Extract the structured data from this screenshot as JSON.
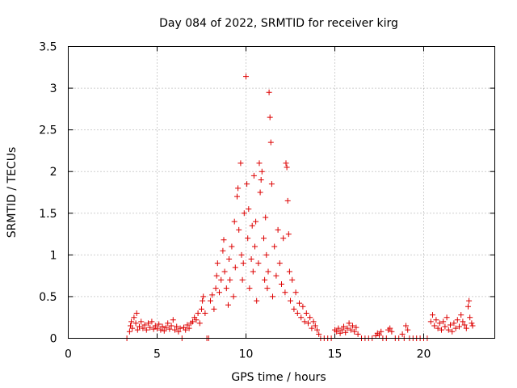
{
  "chart_data": {
    "type": "scatter",
    "title": "Day 084 of 2022, SRMTID for receiver kirg",
    "xlabel": "GPS time / hours",
    "ylabel": "SRMTID / TECUs",
    "xlim": [
      0,
      24
    ],
    "ylim": [
      0,
      3.5
    ],
    "x_ticks": [
      0,
      5,
      10,
      15,
      20
    ],
    "x_tick_labels": [
      "0",
      "5",
      "10",
      "15",
      "20"
    ],
    "y_ticks": [
      0,
      0.5,
      1,
      1.5,
      2,
      2.5,
      3,
      3.5
    ],
    "y_tick_labels": [
      "0",
      "0.5",
      "1",
      "1.5",
      "2",
      "2.5",
      "3",
      "3.5"
    ],
    "grid": true,
    "marker": "plus",
    "series": [
      {
        "name": "SRMTID",
        "color": "#dd0000",
        "points": [
          [
            3.3,
            0.0
          ],
          [
            3.45,
            0.08
          ],
          [
            3.5,
            0.15
          ],
          [
            3.55,
            0.2
          ],
          [
            3.6,
            0.12
          ],
          [
            3.7,
            0.25
          ],
          [
            3.8,
            0.18
          ],
          [
            3.85,
            0.3
          ],
          [
            3.9,
            0.1
          ],
          [
            4.0,
            0.14
          ],
          [
            4.1,
            0.2
          ],
          [
            4.2,
            0.12
          ],
          [
            4.3,
            0.16
          ],
          [
            4.4,
            0.1
          ],
          [
            4.5,
            0.18
          ],
          [
            4.6,
            0.13
          ],
          [
            4.7,
            0.2
          ],
          [
            4.8,
            0.11
          ],
          [
            4.9,
            0.15
          ],
          [
            5.0,
            0.12
          ],
          [
            5.1,
            0.17
          ],
          [
            5.2,
            0.1
          ],
          [
            5.3,
            0.14
          ],
          [
            5.4,
            0.09
          ],
          [
            5.5,
            0.13
          ],
          [
            5.6,
            0.18
          ],
          [
            5.7,
            0.11
          ],
          [
            5.8,
            0.15
          ],
          [
            5.9,
            0.22
          ],
          [
            6.0,
            0.1
          ],
          [
            6.1,
            0.14
          ],
          [
            6.2,
            0.08
          ],
          [
            6.3,
            0.12
          ],
          [
            6.4,
            0.0
          ],
          [
            6.5,
            0.13
          ],
          [
            6.6,
            0.1
          ],
          [
            6.7,
            0.16
          ],
          [
            6.8,
            0.12
          ],
          [
            6.9,
            0.18
          ],
          [
            7.0,
            0.2
          ],
          [
            7.1,
            0.25
          ],
          [
            7.2,
            0.22
          ],
          [
            7.3,
            0.3
          ],
          [
            7.4,
            0.18
          ],
          [
            7.5,
            0.35
          ],
          [
            7.55,
            0.45
          ],
          [
            7.6,
            0.5
          ],
          [
            7.7,
            0.3
          ],
          [
            7.8,
            0.0
          ],
          [
            7.9,
            0.0
          ],
          [
            8.0,
            0.45
          ],
          [
            8.1,
            0.52
          ],
          [
            8.2,
            0.35
          ],
          [
            8.3,
            0.6
          ],
          [
            8.35,
            0.75
          ],
          [
            8.4,
            0.9
          ],
          [
            8.5,
            0.55
          ],
          [
            8.6,
            0.7
          ],
          [
            8.7,
            1.05
          ],
          [
            8.75,
            1.18
          ],
          [
            8.8,
            0.8
          ],
          [
            8.9,
            0.6
          ],
          [
            9.0,
            0.4
          ],
          [
            9.05,
            0.95
          ],
          [
            9.1,
            0.7
          ],
          [
            9.2,
            1.1
          ],
          [
            9.3,
            0.5
          ],
          [
            9.35,
            1.4
          ],
          [
            9.4,
            0.85
          ],
          [
            9.5,
            1.7
          ],
          [
            9.55,
            1.8
          ],
          [
            9.6,
            1.3
          ],
          [
            9.7,
            2.1
          ],
          [
            9.75,
            1.0
          ],
          [
            9.8,
            0.7
          ],
          [
            9.85,
            0.9
          ],
          [
            9.9,
            1.5
          ],
          [
            10.0,
            3.14
          ],
          [
            10.05,
            1.85
          ],
          [
            10.1,
            1.2
          ],
          [
            10.15,
            1.55
          ],
          [
            10.2,
            0.6
          ],
          [
            10.3,
            0.95
          ],
          [
            10.35,
            1.35
          ],
          [
            10.4,
            0.8
          ],
          [
            10.45,
            1.95
          ],
          [
            10.5,
            1.1
          ],
          [
            10.55,
            1.4
          ],
          [
            10.6,
            0.45
          ],
          [
            10.7,
            0.9
          ],
          [
            10.75,
            2.1
          ],
          [
            10.8,
            1.75
          ],
          [
            10.85,
            1.9
          ],
          [
            10.9,
            2.0
          ],
          [
            11.0,
            1.2
          ],
          [
            11.05,
            0.7
          ],
          [
            11.1,
            1.45
          ],
          [
            11.15,
            1.0
          ],
          [
            11.2,
            0.6
          ],
          [
            11.25,
            0.8
          ],
          [
            11.3,
            2.95
          ],
          [
            11.35,
            2.65
          ],
          [
            11.4,
            2.35
          ],
          [
            11.45,
            1.85
          ],
          [
            11.5,
            0.5
          ],
          [
            11.6,
            1.1
          ],
          [
            11.7,
            0.75
          ],
          [
            11.8,
            1.3
          ],
          [
            11.9,
            0.9
          ],
          [
            12.0,
            0.65
          ],
          [
            12.1,
            1.2
          ],
          [
            12.2,
            0.55
          ],
          [
            12.25,
            2.1
          ],
          [
            12.3,
            2.05
          ],
          [
            12.35,
            1.65
          ],
          [
            12.4,
            1.25
          ],
          [
            12.45,
            0.8
          ],
          [
            12.5,
            0.45
          ],
          [
            12.6,
            0.7
          ],
          [
            12.7,
            0.35
          ],
          [
            12.8,
            0.55
          ],
          [
            12.9,
            0.3
          ],
          [
            13.0,
            0.42
          ],
          [
            13.1,
            0.25
          ],
          [
            13.2,
            0.38
          ],
          [
            13.3,
            0.2
          ],
          [
            13.4,
            0.3
          ],
          [
            13.5,
            0.18
          ],
          [
            13.6,
            0.25
          ],
          [
            13.7,
            0.12
          ],
          [
            13.8,
            0.2
          ],
          [
            13.9,
            0.15
          ],
          [
            14.0,
            0.1
          ],
          [
            14.1,
            0.05
          ],
          [
            14.2,
            0.0
          ],
          [
            14.4,
            0.0
          ],
          [
            14.6,
            0.0
          ],
          [
            14.8,
            0.0
          ],
          [
            15.0,
            0.1
          ],
          [
            15.1,
            0.08
          ],
          [
            15.2,
            0.12
          ],
          [
            15.3,
            0.06
          ],
          [
            15.4,
            0.1
          ],
          [
            15.5,
            0.14
          ],
          [
            15.6,
            0.07
          ],
          [
            15.7,
            0.12
          ],
          [
            15.8,
            0.18
          ],
          [
            15.9,
            0.1
          ],
          [
            16.0,
            0.15
          ],
          [
            16.1,
            0.08
          ],
          [
            16.2,
            0.13
          ],
          [
            16.3,
            0.05
          ],
          [
            16.5,
            0.0
          ],
          [
            16.7,
            0.0
          ],
          [
            16.9,
            0.0
          ],
          [
            17.1,
            0.0
          ],
          [
            17.3,
            0.03
          ],
          [
            17.4,
            0.06
          ],
          [
            17.5,
            0.04
          ],
          [
            17.6,
            0.08
          ],
          [
            17.7,
            0.0
          ],
          [
            17.9,
            0.0
          ],
          [
            18.0,
            0.1
          ],
          [
            18.1,
            0.12
          ],
          [
            18.2,
            0.08
          ],
          [
            18.4,
            0.0
          ],
          [
            18.6,
            0.0
          ],
          [
            18.8,
            0.05
          ],
          [
            18.9,
            0.0
          ],
          [
            19.0,
            0.15
          ],
          [
            19.1,
            0.1
          ],
          [
            19.2,
            0.0
          ],
          [
            19.4,
            0.0
          ],
          [
            19.6,
            0.0
          ],
          [
            19.8,
            0.0
          ],
          [
            20.0,
            0.0
          ],
          [
            20.2,
            0.0
          ],
          [
            20.4,
            0.2
          ],
          [
            20.5,
            0.28
          ],
          [
            20.6,
            0.15
          ],
          [
            20.7,
            0.22
          ],
          [
            20.8,
            0.12
          ],
          [
            20.9,
            0.18
          ],
          [
            21.0,
            0.1
          ],
          [
            21.1,
            0.2
          ],
          [
            21.2,
            0.14
          ],
          [
            21.3,
            0.25
          ],
          [
            21.4,
            0.1
          ],
          [
            21.5,
            0.16
          ],
          [
            21.6,
            0.08
          ],
          [
            21.7,
            0.18
          ],
          [
            21.8,
            0.12
          ],
          [
            21.9,
            0.22
          ],
          [
            22.0,
            0.14
          ],
          [
            22.1,
            0.28
          ],
          [
            22.2,
            0.2
          ],
          [
            22.3,
            0.16
          ],
          [
            22.4,
            0.12
          ],
          [
            22.5,
            0.38
          ],
          [
            22.55,
            0.45
          ],
          [
            22.6,
            0.25
          ],
          [
            22.7,
            0.18
          ],
          [
            22.75,
            0.15
          ]
        ]
      }
    ]
  }
}
